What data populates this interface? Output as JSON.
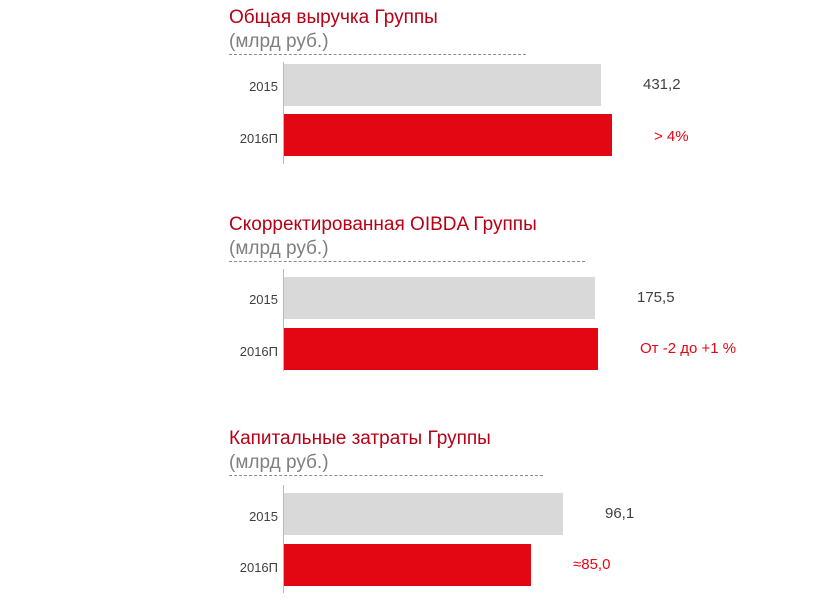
{
  "colors": {
    "base_bar": "#d9d9d9",
    "forecast_bar": "#e30613",
    "title": "#b50016",
    "unit": "#7f7f7f",
    "base_value": "#404040",
    "forecast_value": "#e30613"
  },
  "chart_data": [
    {
      "type": "bar",
      "orientation": "horizontal",
      "title": "Общая выручка Группы",
      "subtitle": "(млрд руб.)",
      "categories": [
        "2015",
        "2016П"
      ],
      "values": [
        431.2,
        447
      ],
      "value_labels": [
        "431,2",
        "> 4%"
      ],
      "xlim": [
        0,
        735
      ],
      "grid": false
    },
    {
      "type": "bar",
      "orientation": "horizontal",
      "title": "Скорректированная OIBDA Группы",
      "subtitle": "(млрд руб.)",
      "categories": [
        "2015",
        "2016П"
      ],
      "values": [
        175.5,
        177.3
      ],
      "value_labels": [
        "175,5",
        "От -2 до +1 %"
      ],
      "xlim": [
        0,
        305
      ],
      "grid": false
    },
    {
      "type": "bar",
      "orientation": "horizontal",
      "title": "Капитальные затраты Группы",
      "subtitle": "(млрд руб.)",
      "categories": [
        "2015",
        "2016П"
      ],
      "values": [
        96.1,
        85.0
      ],
      "value_labels": [
        "96,1",
        "≈85,0"
      ],
      "xlim": [
        0,
        186
      ],
      "grid": false
    }
  ]
}
